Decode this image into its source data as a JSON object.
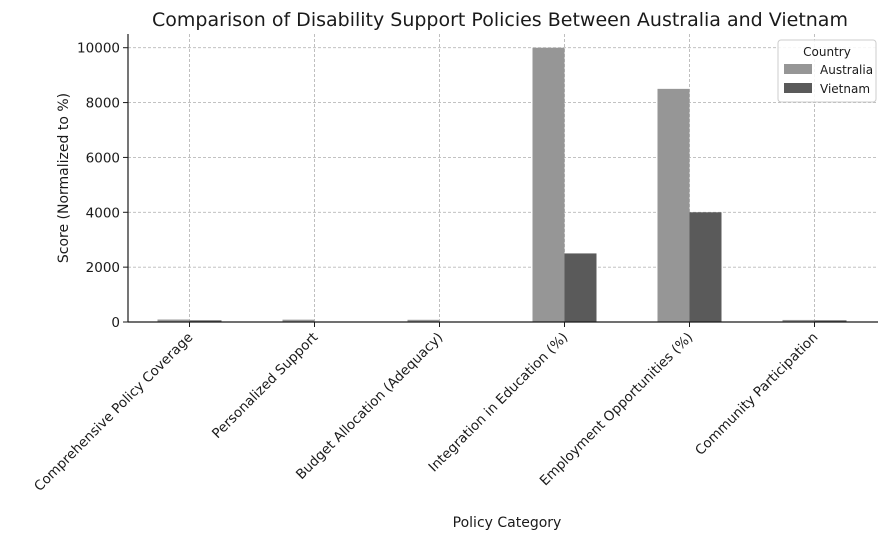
{
  "chart_data": {
    "type": "bar",
    "title": "Comparison of Disability Support Policies Between Australia and Vietnam",
    "xlabel": "Policy Category",
    "ylabel": "Score (Normalized to %)",
    "categories": [
      "Comprehensive Policy Coverage",
      "Personalized Support",
      "Budget Allocation (Adequacy)",
      "Integration in Education (%)",
      "Employment Opportunities (%)",
      "Community Participation"
    ],
    "series": [
      {
        "name": "Australia",
        "color": "#969696",
        "values": [
          90,
          85,
          80,
          10000,
          8500,
          75
        ]
      },
      {
        "name": "Vietnam",
        "color": "#5a5a5a",
        "values": [
          60,
          0,
          0,
          2500,
          4000,
          60
        ]
      }
    ],
    "ylim": [
      0,
      10500
    ],
    "yticks": [
      0,
      2000,
      4000,
      6000,
      8000,
      10000
    ],
    "grid": true,
    "legend": {
      "title": "Country",
      "placement": "top-right"
    }
  }
}
